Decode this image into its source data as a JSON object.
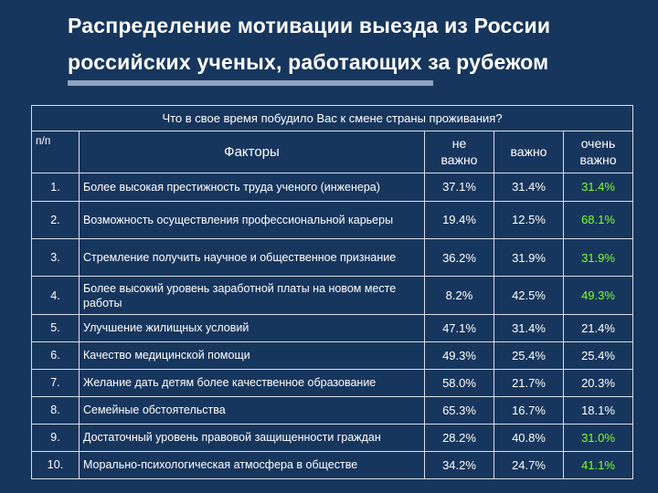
{
  "title": {
    "line1": "Распределение мотивации выезда из России",
    "line2": "российских ученых, работающих за рубежом"
  },
  "table": {
    "question": "Что в свое время побудило Вас к смене страны проживания?",
    "headers": {
      "num": "п/п",
      "factor": "Факторы",
      "not_important_1": "не",
      "not_important_2": "важно",
      "important": "важно",
      "very_important_1": "очень",
      "very_important_2": "важно"
    },
    "highlight_color": "#7dff2f",
    "rows": [
      {
        "num": "1.",
        "factor": "Более высокая престижность труда ученого (инженера)",
        "not_important": "37.1%",
        "important": "31.4%",
        "very_important": "31.4%"
      },
      {
        "num": "2.",
        "factor": "Возможность осуществления профессиональной карьеры",
        "not_important": "19.4%",
        "important": "12.5%",
        "very_important": "68.1%"
      },
      {
        "num": "3.",
        "factor": "Стремление получить научное и общественное признание",
        "not_important": "36.2%",
        "important": "31.9%",
        "very_important": "31.9%"
      },
      {
        "num": "4.",
        "factor": "Более высокий уровень заработной платы на новом месте работы",
        "not_important": "8.2%",
        "important": "42.5%",
        "very_important": "49.3%"
      },
      {
        "num": "5.",
        "factor": "Улучшение жилищных условий",
        "not_important": "47.1%",
        "important": "31.4%",
        "very_important": "21.4%"
      },
      {
        "num": "6.",
        "factor": "Качество медицинской помощи",
        "not_important": "49.3%",
        "important": "25.4%",
        "very_important": "25.4%"
      },
      {
        "num": "7.",
        "factor": "Желание дать детям более качественное образование",
        "not_important": "58.0%",
        "important": "21.7%",
        "very_important": "20.3%"
      },
      {
        "num": "8.",
        "factor": "Семейные обстоятельства",
        "not_important": "65.3%",
        "important": "16.7%",
        "very_important": "18.1%"
      },
      {
        "num": "9.",
        "factor": "Достаточный уровень правовой защищенности граждан",
        "not_important": "28.2%",
        "important": "40.8%",
        "very_important": "31.0%"
      },
      {
        "num": "10.",
        "factor": "Морально-психологическая атмосфера в обществе",
        "not_important": "34.2%",
        "important": "24.7%",
        "very_important": "41.1%"
      }
    ]
  }
}
